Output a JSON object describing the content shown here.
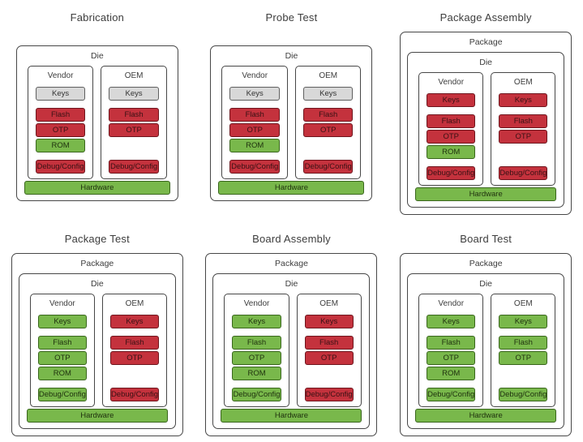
{
  "palette": {
    "red": "#c4323d",
    "green": "#79b84b",
    "gray": "#d8d8d8",
    "box_border": "#474747",
    "text": "#3d3d3d",
    "background": "#ffffff"
  },
  "stages": [
    {
      "title": "Fabrication",
      "die_label": "Die",
      "columns": [
        {
          "label": "Vendor",
          "boxes": [
            {
              "label": "Keys",
              "color": "gray"
            },
            {
              "label": "Flash",
              "color": "red"
            },
            {
              "label": "OTP",
              "color": "red"
            },
            {
              "label": "ROM",
              "color": "green"
            },
            {
              "label": "Debug/Config",
              "color": "red"
            }
          ]
        },
        {
          "label": "OEM",
          "boxes": [
            {
              "label": "Keys",
              "color": "gray"
            },
            {
              "label": "Flash",
              "color": "red"
            },
            {
              "label": "OTP",
              "color": "red"
            },
            {
              "label": "Debug/Config",
              "color": "red"
            }
          ]
        }
      ],
      "hardware": {
        "label": "Hardware",
        "color": "green"
      }
    },
    {
      "title": "Probe Test",
      "die_label": "Die",
      "columns": [
        {
          "label": "Vendor",
          "boxes": [
            {
              "label": "Keys",
              "color": "gray"
            },
            {
              "label": "Flash",
              "color": "red"
            },
            {
              "label": "OTP",
              "color": "red"
            },
            {
              "label": "ROM",
              "color": "green"
            },
            {
              "label": "Debug/Config",
              "color": "red"
            }
          ]
        },
        {
          "label": "OEM",
          "boxes": [
            {
              "label": "Keys",
              "color": "gray"
            },
            {
              "label": "Flash",
              "color": "red"
            },
            {
              "label": "OTP",
              "color": "red"
            },
            {
              "label": "Debug/Config",
              "color": "red"
            }
          ]
        }
      ],
      "hardware": {
        "label": "Hardware",
        "color": "green"
      }
    },
    {
      "title": "Package Assembly",
      "package_label": "Package",
      "die_label": "Die",
      "columns": [
        {
          "label": "Vendor",
          "boxes": [
            {
              "label": "Keys",
              "color": "red"
            },
            {
              "label": "Flash",
              "color": "red"
            },
            {
              "label": "OTP",
              "color": "red"
            },
            {
              "label": "ROM",
              "color": "green"
            },
            {
              "label": "Debug/Config",
              "color": "red"
            }
          ]
        },
        {
          "label": "OEM",
          "boxes": [
            {
              "label": "Keys",
              "color": "red"
            },
            {
              "label": "Flash",
              "color": "red"
            },
            {
              "label": "OTP",
              "color": "red"
            },
            {
              "label": "Debug/Config",
              "color": "red"
            }
          ]
        }
      ],
      "hardware": {
        "label": "Hardware",
        "color": "green"
      }
    },
    {
      "title": "Package Test",
      "package_label": "Package",
      "die_label": "Die",
      "columns": [
        {
          "label": "Vendor",
          "boxes": [
            {
              "label": "Keys",
              "color": "green"
            },
            {
              "label": "Flash",
              "color": "green"
            },
            {
              "label": "OTP",
              "color": "green"
            },
            {
              "label": "ROM",
              "color": "green"
            },
            {
              "label": "Debug/Config",
              "color": "green"
            }
          ]
        },
        {
          "label": "OEM",
          "boxes": [
            {
              "label": "Keys",
              "color": "red"
            },
            {
              "label": "Flash",
              "color": "red"
            },
            {
              "label": "OTP",
              "color": "red"
            },
            {
              "label": "Debug/Config",
              "color": "red"
            }
          ]
        }
      ],
      "hardware": {
        "label": "Hardware",
        "color": "green"
      }
    },
    {
      "title": "Board Assembly",
      "package_label": "Package",
      "die_label": "Die",
      "columns": [
        {
          "label": "Vendor",
          "boxes": [
            {
              "label": "Keys",
              "color": "green"
            },
            {
              "label": "Flash",
              "color": "green"
            },
            {
              "label": "OTP",
              "color": "green"
            },
            {
              "label": "ROM",
              "color": "green"
            },
            {
              "label": "Debug/Config",
              "color": "green"
            }
          ]
        },
        {
          "label": "OEM",
          "boxes": [
            {
              "label": "Keys",
              "color": "red"
            },
            {
              "label": "Flash",
              "color": "red"
            },
            {
              "label": "OTP",
              "color": "red"
            },
            {
              "label": "Debug/Config",
              "color": "red"
            }
          ]
        }
      ],
      "hardware": {
        "label": "Hardware",
        "color": "green"
      }
    },
    {
      "title": "Board Test",
      "package_label": "Package",
      "die_label": "Die",
      "columns": [
        {
          "label": "Vendor",
          "boxes": [
            {
              "label": "Keys",
              "color": "green"
            },
            {
              "label": "Flash",
              "color": "green"
            },
            {
              "label": "OTP",
              "color": "green"
            },
            {
              "label": "ROM",
              "color": "green"
            },
            {
              "label": "Debug/Config",
              "color": "green"
            }
          ]
        },
        {
          "label": "OEM",
          "boxes": [
            {
              "label": "Keys",
              "color": "green"
            },
            {
              "label": "Flash",
              "color": "green"
            },
            {
              "label": "OTP",
              "color": "green"
            },
            {
              "label": "Debug/Config",
              "color": "green"
            }
          ]
        }
      ],
      "hardware": {
        "label": "Hardware",
        "color": "green"
      }
    }
  ]
}
